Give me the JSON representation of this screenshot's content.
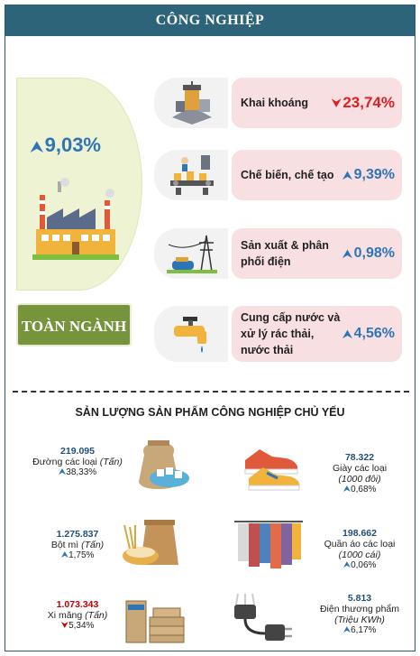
{
  "header": {
    "title": "CÔNG NGHIỆP"
  },
  "overall": {
    "value": "9,03%",
    "label": "TOÀN NGÀNH"
  },
  "sectors": [
    {
      "name": "Khai khoáng",
      "value": "23,74%",
      "direction": "down",
      "icon": "mining-icon"
    },
    {
      "name": "Chế biến, chế tạo",
      "value": "9,39%",
      "direction": "up",
      "icon": "manufacturing-icon"
    },
    {
      "name": "Sản xuất & phân phối điện",
      "value": "0,98%",
      "direction": "up",
      "icon": "power-tower-icon"
    },
    {
      "name": "Cung cấp nước và xử lý rác thải, nước thải",
      "value": "4,56%",
      "direction": "up",
      "icon": "water-tap-icon"
    }
  ],
  "products": {
    "title": "SẢN LƯỢNG SẢN PHẨM CÔNG NGHIỆP CHỦ YẾU",
    "items": [
      {
        "value": "219.095",
        "name": "Đường các loại",
        "unit": "(Tấn)",
        "change": "38,33%",
        "direction": "up",
        "icon": "sugar-sack-icon"
      },
      {
        "value": "78.322",
        "name": "Giày các loại",
        "unit": "(1000 đôi)",
        "change": "0,68%",
        "direction": "up",
        "icon": "sneaker-icon"
      },
      {
        "value": "1.275.837",
        "name": "Bột mì",
        "unit": "(Tấn)",
        "change": "1,75%",
        "direction": "up",
        "icon": "flour-sack-icon"
      },
      {
        "value": "198.662",
        "name": "Quần áo các loại",
        "unit": "(1000 cái)",
        "change": "0,06%",
        "direction": "up",
        "icon": "clothes-rack-icon"
      },
      {
        "value": "1.073.343",
        "name": "Xi măng",
        "unit": "(Tấn)",
        "change": "5,34%",
        "direction": "down",
        "icon": "cement-bags-icon"
      },
      {
        "value": "5.813",
        "name": "Điện thương phẩm",
        "unit": "(Triệu KWh)",
        "change": "6,17%",
        "direction": "up",
        "icon": "power-plug-icon"
      }
    ]
  }
}
